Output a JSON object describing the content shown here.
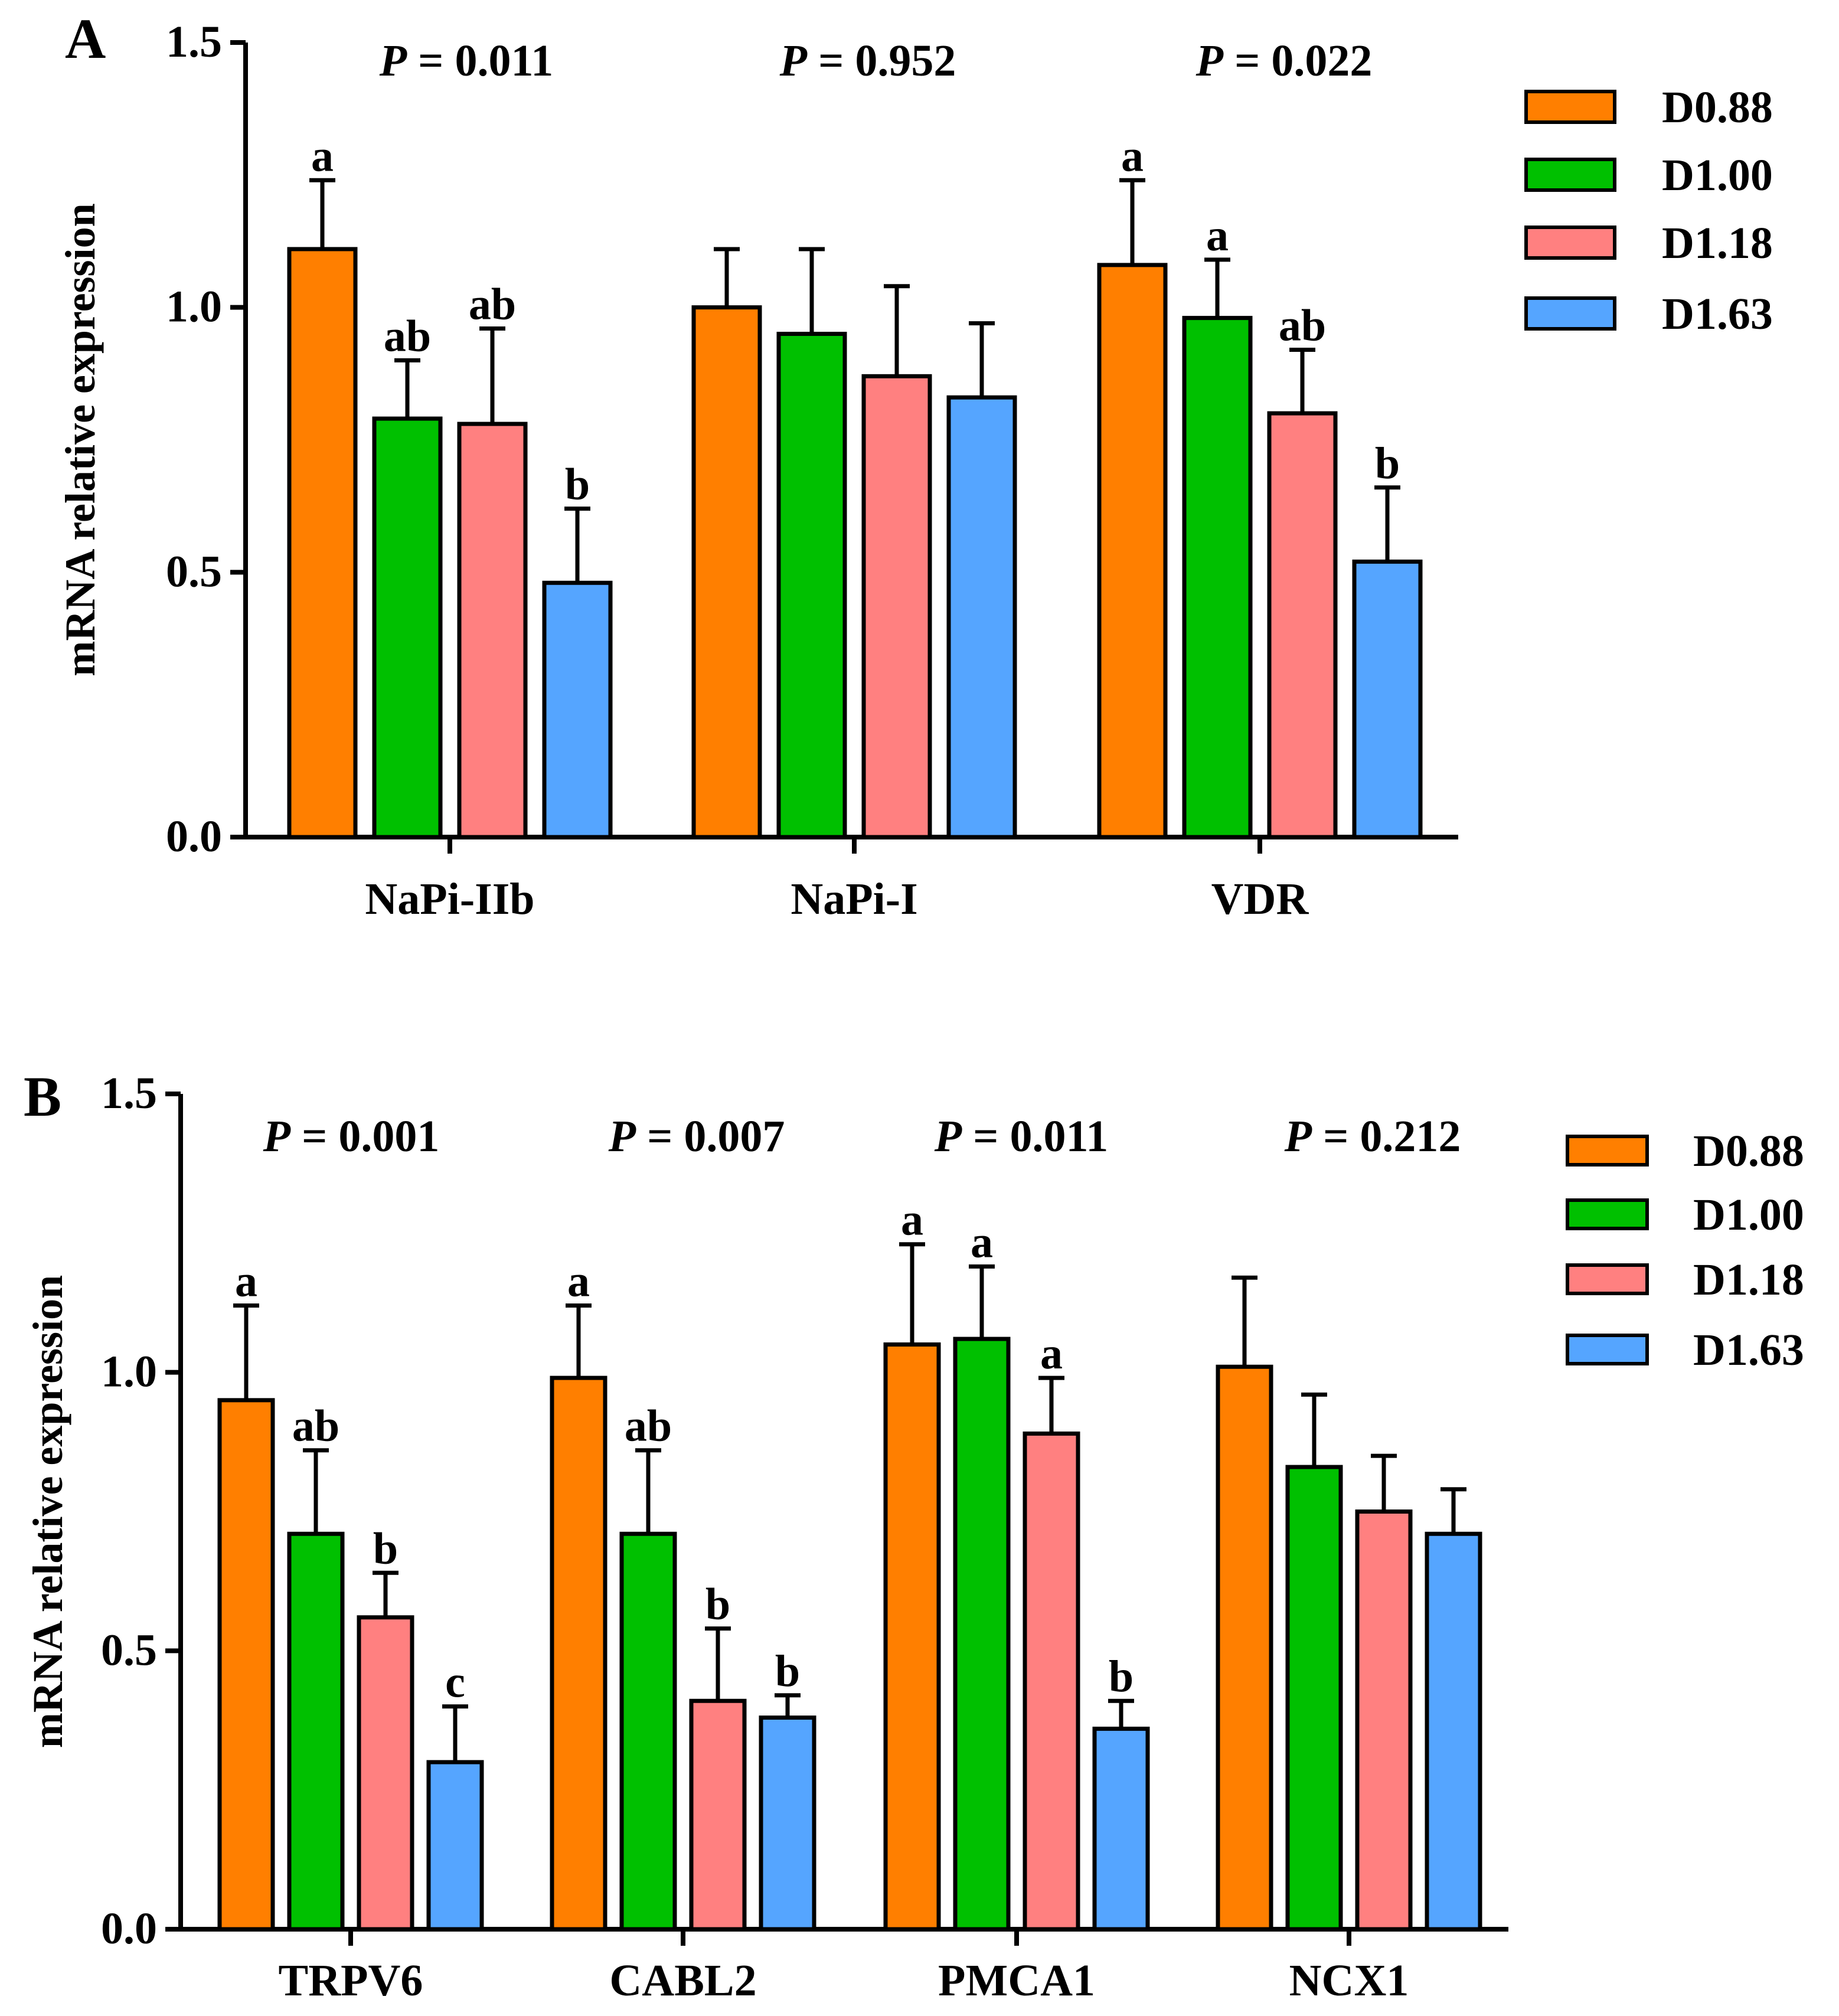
{
  "colors": {
    "D0.88": "#ff7f00",
    "D1.00": "#00c000",
    "D1.18": "#ff8080",
    "D1.63": "#55a5ff"
  },
  "chart_data": [
    {
      "panel_label": "A",
      "type": "bar",
      "ylabel": "mRNA relative expression",
      "ylim": [
        0,
        1.5
      ],
      "yticks": [
        0.0,
        0.5,
        1.0,
        1.5
      ],
      "ytick_labels": [
        "0.0",
        "0.5",
        "1.0",
        "1.5"
      ],
      "legend_position": "top-right",
      "series_names": [
        "D0.88",
        "D1.00",
        "D1.18",
        "D1.63"
      ],
      "groups": [
        {
          "category": "NaPi-IIb",
          "p_prefix": "P",
          "p_text": " = 0.011",
          "values": [
            1.11,
            0.79,
            0.78,
            0.48
          ],
          "errors": [
            0.13,
            0.11,
            0.18,
            0.14
          ],
          "letters": [
            "a",
            "ab",
            "ab",
            "b"
          ]
        },
        {
          "category": "NaPi-I",
          "p_prefix": "P",
          "p_text": " = 0.952",
          "values": [
            1.0,
            0.95,
            0.87,
            0.83
          ],
          "errors": [
            0.11,
            0.16,
            0.17,
            0.14
          ],
          "letters": [
            "",
            "",
            "",
            ""
          ]
        },
        {
          "category": "VDR",
          "p_prefix": "P",
          "p_text": " = 0.022",
          "values": [
            1.08,
            0.98,
            0.8,
            0.52
          ],
          "errors": [
            0.16,
            0.11,
            0.12,
            0.14
          ],
          "letters": [
            "a",
            "a",
            "ab",
            "b"
          ]
        }
      ]
    },
    {
      "panel_label": "B",
      "type": "bar",
      "ylabel": "mRNA relative expression",
      "ylim": [
        0,
        1.5
      ],
      "yticks": [
        0.0,
        0.5,
        1.0,
        1.5
      ],
      "ytick_labels": [
        "0.0",
        "0.5",
        "1.0",
        "1.5"
      ],
      "legend_position": "top-right",
      "series_names": [
        "D0.88",
        "D1.00",
        "D1.18",
        "D1.63"
      ],
      "groups": [
        {
          "category": "TRPV6",
          "p_prefix": "P",
          "p_text": " = 0.001",
          "values": [
            0.95,
            0.71,
            0.56,
            0.3
          ],
          "errors": [
            0.17,
            0.15,
            0.08,
            0.1
          ],
          "letters": [
            "a",
            "ab",
            "b",
            "c"
          ]
        },
        {
          "category": "CABL2",
          "p_prefix": "P",
          "p_text": " = 0.007",
          "values": [
            0.99,
            0.71,
            0.41,
            0.38
          ],
          "errors": [
            0.13,
            0.15,
            0.13,
            0.04
          ],
          "letters": [
            "a",
            "ab",
            "b",
            "b"
          ]
        },
        {
          "category": "PMCA1",
          "p_prefix": "P",
          "p_text": " = 0.011",
          "values": [
            1.05,
            1.06,
            0.89,
            0.36
          ],
          "errors": [
            0.18,
            0.13,
            0.1,
            0.05
          ],
          "letters": [
            "a",
            "a",
            "a",
            "b"
          ]
        },
        {
          "category": "NCX1",
          "p_prefix": "P",
          "p_text": " = 0.212",
          "values": [
            1.01,
            0.83,
            0.75,
            0.71
          ],
          "errors": [
            0.16,
            0.13,
            0.1,
            0.08
          ],
          "letters": [
            "",
            "",
            "",
            ""
          ]
        }
      ]
    }
  ]
}
